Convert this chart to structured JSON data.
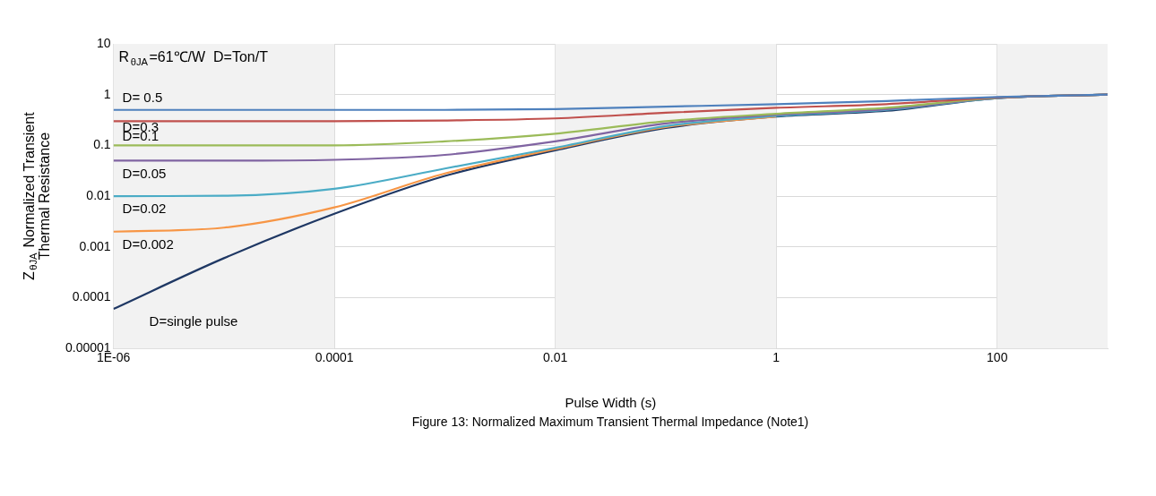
{
  "chart_data": {
    "type": "line",
    "ylabel": "Z$_{θJA}$ Normalized Transient Thermal Resistance",
    "xlabel": "Pulse Width (s)",
    "annotations": [
      "R$_{θJA}$=61℃/W  D=Ton/T",
      "Figure 13: Normalized Maximum Transient Thermal Impedance (Note1)"
    ],
    "x": [
      1e-06,
      1e-05,
      0.0001,
      0.001,
      0.01,
      0.1,
      1,
      10,
      100,
      1000
    ],
    "series": [
      {
        "name": "D= 0.5",
        "color": "#4f81bd",
        "values": [
          0.5,
          0.5,
          0.5,
          0.5,
          0.52,
          0.58,
          0.65,
          0.75,
          0.9,
          1
        ]
      },
      {
        "name": "D=0.3",
        "color": "#c0504d",
        "values": [
          0.3,
          0.3,
          0.3,
          0.31,
          0.34,
          0.44,
          0.55,
          0.65,
          0.88,
          1
        ]
      },
      {
        "name": "D=0.1",
        "color": "#9bbb59",
        "values": [
          0.1,
          0.1,
          0.1,
          0.12,
          0.17,
          0.3,
          0.42,
          0.55,
          0.87,
          1
        ]
      },
      {
        "name": "D=0.05",
        "color": "#8064a2",
        "values": [
          0.05,
          0.05,
          0.052,
          0.065,
          0.12,
          0.27,
          0.4,
          0.52,
          0.86,
          1
        ]
      },
      {
        "name": "D=0.02",
        "color": "#4bacc6",
        "values": [
          0.01,
          0.0102,
          0.014,
          0.035,
          0.09,
          0.24,
          0.38,
          0.5,
          0.85,
          1
        ]
      },
      {
        "name": "D=0.002",
        "color": "#f79646",
        "values": [
          0.002,
          0.0024,
          0.006,
          0.028,
          0.085,
          0.23,
          0.37,
          null,
          null,
          null
        ]
      },
      {
        "name": "D=single pulse",
        "color": "#1f3864",
        "values": [
          6e-05,
          0.0006,
          0.0045,
          0.025,
          0.08,
          0.22,
          0.37,
          0.48,
          0.85,
          1
        ]
      }
    ],
    "log": "xy",
    "xlim": [
      1e-06,
      1000
    ],
    "ylim": [
      1e-05,
      10
    ],
    "xticks": [
      {
        "value": 1e-06,
        "label": "1E-06"
      },
      0.0001,
      0.01,
      1,
      100
    ],
    "yticks": [
      {
        "value": 1e-05,
        "label": "0.00001"
      },
      0.0001,
      0.001,
      0.01,
      0.1,
      1,
      10
    ],
    "bands": [
      {
        "axis": "x",
        "from": 1e-06,
        "to": 0.0001,
        "color": "#f2f2f2"
      },
      {
        "axis": "x",
        "from": 0.01,
        "to": 1,
        "color": "#f2f2f2"
      },
      {
        "axis": "x",
        "from": 100,
        "to": 1000,
        "color": "#f2f2f2"
      }
    ],
    "grid": true,
    "legend": false,
    "marker": "none",
    "line_style": "solid"
  }
}
